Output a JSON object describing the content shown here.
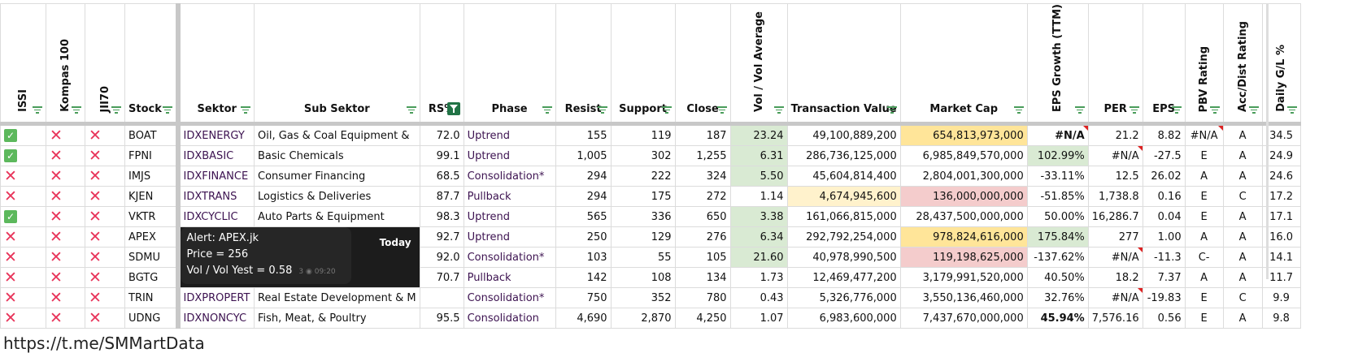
{
  "columns": [
    "ISSI",
    "Kompas 100",
    "JII70",
    "Stock",
    "Sektor",
    "Sub Sektor",
    "RS%",
    "Phase",
    "Resist",
    "Support",
    "Close",
    "Vol / Vol Average",
    "Transaction Value",
    "Market Cap",
    "EPS Growth (TTM)",
    "PER",
    "EPS",
    "PBV Rating",
    "Acc/Dist Rating",
    "Daily G/L %"
  ],
  "rows": [
    {
      "issi": "yes",
      "kompas": "no",
      "jii": "no",
      "stock": "BOAT",
      "sektor": "IDXENERGY",
      "sub": "Oil, Gas & Coal Equipment &",
      "rs": "72.0",
      "phase": "Uptrend",
      "resist": "155",
      "support": "119",
      "close": "187",
      "vol": "23.24",
      "tv": "49,100,889,200",
      "mc": "654,813,973,000",
      "epsg": "#N/A",
      "per": "21.2",
      "eps": "8.82",
      "pbv": "#N/A",
      "ad": "A",
      "dgl": "34.5"
    },
    {
      "issi": "yes",
      "kompas": "no",
      "jii": "no",
      "stock": "FPNI",
      "sektor": "IDXBASIC",
      "sub": "Basic Chemicals",
      "rs": "99.1",
      "phase": "Uptrend",
      "resist": "1,005",
      "support": "302",
      "close": "1,255",
      "vol": "6.31",
      "tv": "286,736,125,000",
      "mc": "6,985,849,570,000",
      "epsg": "102.99%",
      "per": "#N/A",
      "eps": "-27.5",
      "pbv": "E",
      "ad": "A",
      "dgl": "24.9"
    },
    {
      "issi": "no",
      "kompas": "no",
      "jii": "no",
      "stock": "IMJS",
      "sektor": "IDXFINANCE",
      "sub": "Consumer Financing",
      "rs": "68.5",
      "phase": "Consolidation*",
      "resist": "294",
      "support": "222",
      "close": "324",
      "vol": "5.50",
      "tv": "45,604,814,400",
      "mc": "2,804,001,300,000",
      "epsg": "-33.11%",
      "per": "12.5",
      "eps": "26.02",
      "pbv": "A",
      "ad": "A",
      "dgl": "24.6"
    },
    {
      "issi": "no",
      "kompas": "no",
      "jii": "no",
      "stock": "KJEN",
      "sektor": "IDXTRANS",
      "sub": "Logistics & Deliveries",
      "rs": "87.7",
      "phase": "Pullback",
      "resist": "294",
      "support": "175",
      "close": "272",
      "vol": "1.14",
      "tv": "4,674,945,600",
      "mc": "136,000,000,000",
      "epsg": "-51.85%",
      "per": "1,738.8",
      "eps": "0.16",
      "pbv": "E",
      "ad": "C",
      "dgl": "17.2"
    },
    {
      "issi": "yes",
      "kompas": "no",
      "jii": "no",
      "stock": "VKTR",
      "sektor": "IDXCYCLIC",
      "sub": "Auto Parts & Equipment",
      "rs": "98.3",
      "phase": "Uptrend",
      "resist": "565",
      "support": "336",
      "close": "650",
      "vol": "3.38",
      "tv": "161,066,815,000",
      "mc": "28,437,500,000,000",
      "epsg": "50.00%",
      "per": "16,286.7",
      "eps": "0.04",
      "pbv": "E",
      "ad": "A",
      "dgl": "17.1"
    },
    {
      "issi": "no",
      "kompas": "no",
      "jii": "no",
      "stock": "APEX",
      "sektor": "",
      "sub": "",
      "rs": "92.7",
      "phase": "Uptrend",
      "resist": "250",
      "support": "129",
      "close": "276",
      "vol": "6.34",
      "tv": "292,792,254,000",
      "mc": "978,824,616,000",
      "epsg": "175.84%",
      "per": "277",
      "eps": "1.00",
      "pbv": "A",
      "ad": "A",
      "dgl": "16.0"
    },
    {
      "issi": "no",
      "kompas": "no",
      "jii": "no",
      "stock": "SDMU",
      "sektor": "",
      "sub": "",
      "rs": "92.0",
      "phase": "Consolidation*",
      "resist": "103",
      "support": "55",
      "close": "105",
      "vol": "21.60",
      "tv": "40,978,990,500",
      "mc": "119,198,625,000",
      "epsg": "-137.62%",
      "per": "#N/A",
      "eps": "-11.3",
      "pbv": "C-",
      "ad": "A",
      "dgl": "14.1"
    },
    {
      "issi": "no",
      "kompas": "no",
      "jii": "no",
      "stock": "BGTG",
      "sektor": "",
      "sub": "",
      "rs": "70.7",
      "phase": "Pullback",
      "resist": "142",
      "support": "108",
      "close": "134",
      "vol": "1.73",
      "tv": "12,469,477,200",
      "mc": "3,179,991,520,000",
      "epsg": "40.50%",
      "per": "18.2",
      "eps": "7.37",
      "pbv": "A",
      "ad": "A",
      "dgl": "11.7"
    },
    {
      "issi": "no",
      "kompas": "no",
      "jii": "no",
      "stock": "TRIN",
      "sektor": "IDXPROPERT",
      "sub": "Real Estate Development & M",
      "rs": "",
      "phase": "Consolidation*",
      "resist": "750",
      "support": "352",
      "close": "780",
      "vol": "0.43",
      "tv": "5,326,776,000",
      "mc": "3,550,136,460,000",
      "epsg": "32.76%",
      "per": "#N/A",
      "eps": "-19.83",
      "pbv": "E",
      "ad": "C",
      "dgl": "9.9"
    },
    {
      "issi": "no",
      "kompas": "no",
      "jii": "no",
      "stock": "UDNG",
      "sektor": "IDXNONCYC",
      "sub": "Fish, Meat, & Poultry",
      "rs": "95.5",
      "phase": "Consolidation",
      "resist": "4,690",
      "support": "2,870",
      "close": "4,250",
      "vol": "1.07",
      "tv": "6,983,600,000",
      "mc": "7,437,670,000,000",
      "epsg": "45.94%",
      "per": "7,576.16",
      "eps": "0.56",
      "pbv": "E",
      "ad": "A",
      "dgl": "9.8"
    }
  ],
  "alert": {
    "line1": "Alert: APEX.jk",
    "line2": "Price = 256",
    "line3": "Vol / Vol Yest = 0.58",
    "views": "3",
    "time": "09:20",
    "day": "Today"
  },
  "footer": "https://t.me/SMMartData",
  "colors": {
    "green_fill": "#d9ead3",
    "yellow_fill": "#ffe599",
    "light_yellow_fill": "#fff2cc",
    "pink_fill": "#f4cccc",
    "check": "#5cb85c",
    "cross": "#e8345a"
  }
}
